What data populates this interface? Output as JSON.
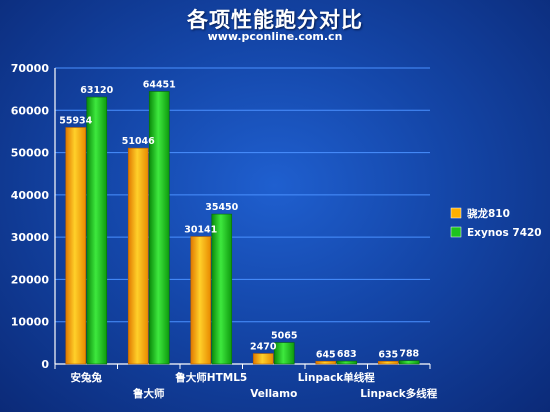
{
  "header": {
    "title": "各项性能跑分对比",
    "subtitle": "www.pconline.com.cn"
  },
  "chart_data": {
    "type": "bar",
    "categories": [
      "安兔兔",
      "鲁大师",
      "鲁大师HTML5",
      "Vellamo",
      "Linpack单线程",
      "Linpack多线程"
    ],
    "series": [
      {
        "name": "骁龙810",
        "values": [
          55934,
          51046,
          30141,
          2470,
          645,
          635
        ],
        "color": "#ffb000"
      },
      {
        "name": "Exynos 7420",
        "values": [
          63120,
          64451,
          35450,
          5065,
          683,
          788
        ],
        "color": "#1ec21e"
      }
    ],
    "yticks": [
      0,
      10000,
      20000,
      30000,
      40000,
      50000,
      60000,
      70000
    ],
    "ylim": [
      0,
      70000
    ],
    "grid": true,
    "legend": "right",
    "title": "各项性能跑分对比",
    "xlabel": "",
    "ylabel": ""
  }
}
